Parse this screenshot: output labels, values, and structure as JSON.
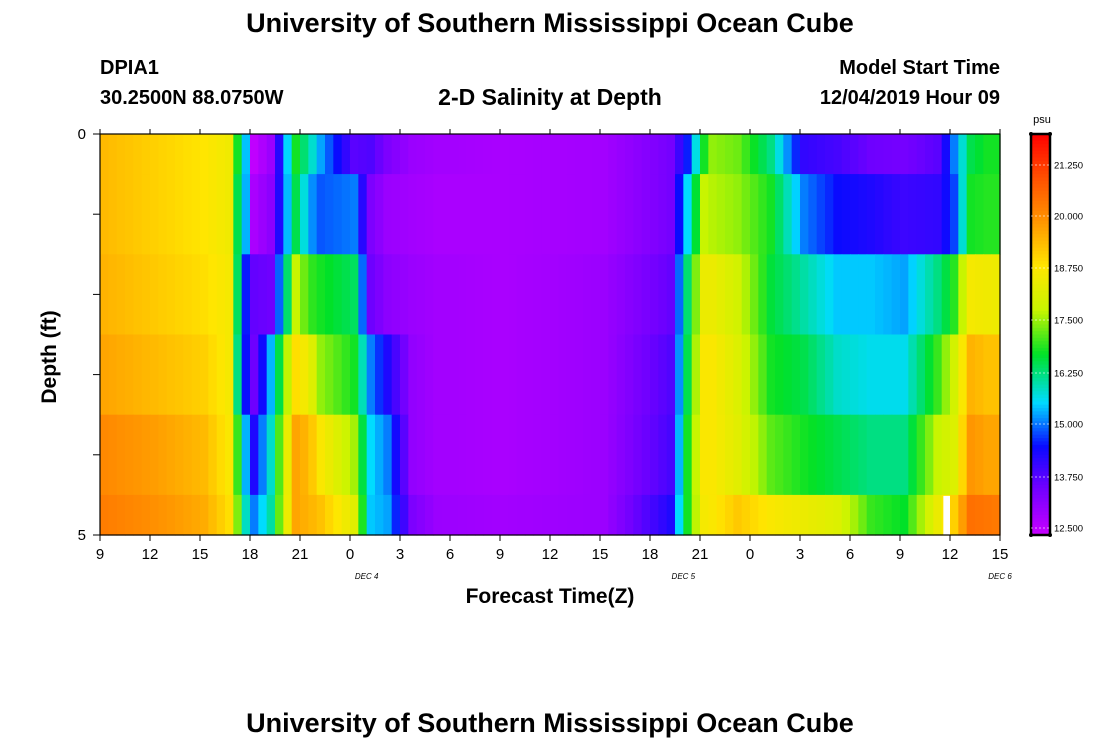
{
  "header": {
    "title_top": "University of Southern Mississippi Ocean Cube",
    "title_bottom": "University of Southern Mississippi Ocean Cube",
    "station_id": "DPIA1",
    "station_coords": "30.2500N 88.0750W",
    "subtitle": "2-D Salinity at Depth",
    "model_label": "Model Start Time",
    "model_time": "12/04/2019 Hour 09"
  },
  "colors": {
    "border": "#000000",
    "missing": "#ffffff"
  },
  "chart_data": {
    "type": "heatmap",
    "title": "2-D Salinity at Depth",
    "xlabel": "Forecast Time(Z)",
    "ylabel": "Depth (ft)",
    "x_tick_labels": [
      "9",
      "12",
      "15",
      "18",
      "21",
      "0",
      "3",
      "6",
      "9",
      "12",
      "15",
      "18",
      "21",
      "0",
      "3",
      "6",
      "9",
      "12",
      "15"
    ],
    "date_labels": [
      {
        "label": "DEC 4",
        "at_hour": 16
      },
      {
        "label": "DEC 5",
        "at_hour": 35
      },
      {
        "label": "DEC 6",
        "at_hour": 54
      }
    ],
    "x_range_hours_from_start": [
      0,
      54
    ],
    "y_tick_labels": [
      "0",
      "5"
    ],
    "ylim": [
      0,
      5
    ],
    "colorbar": {
      "unit": "psu",
      "ticks": [
        "21.250",
        "20.000",
        "18.750",
        "17.500",
        "16.250",
        "15.000",
        "13.750",
        "12.500"
      ],
      "range": [
        12.2,
        22.2
      ]
    },
    "depth_layers": [
      "0-0.5",
      "0.5-1.5",
      "1.5-2.5",
      "2.5-3.5",
      "3.5-4.5",
      "4.5-5"
    ],
    "key_times": [
      0,
      3,
      6,
      7.5,
      8,
      8.7,
      9,
      10,
      11.5,
      12.3,
      13,
      15,
      16,
      17,
      18.5,
      20,
      24,
      30,
      34,
      35,
      36,
      36.5,
      38,
      40,
      42,
      44,
      46,
      48,
      50,
      51,
      52,
      53,
      54
    ],
    "values": [
      [
        19.5,
        19.2,
        18.9,
        18.6,
        16.8,
        14.8,
        12.3,
        12.8,
        16.8,
        16.0,
        15.2,
        13.6,
        13.7,
        13.2,
        12.8,
        12.7,
        12.6,
        12.7,
        13.3,
        14.5,
        16.8,
        17.5,
        17.3,
        16.2,
        14.0,
        13.8,
        13.4,
        13.3,
        13.6,
        15.0,
        16.5,
        16.8,
        16.8
      ],
      [
        19.5,
        19.2,
        18.9,
        18.6,
        16.5,
        14.8,
        12.6,
        13.0,
        16.5,
        15.2,
        14.8,
        15.0,
        13.2,
        12.8,
        12.7,
        12.6,
        12.6,
        12.7,
        13.3,
        15.5,
        17.8,
        17.7,
        17.5,
        16.8,
        15.0,
        14.4,
        14.2,
        13.9,
        14.0,
        14.7,
        16.8,
        16.9,
        16.9
      ],
      [
        19.6,
        19.3,
        19.0,
        18.7,
        16.4,
        13.7,
        13.5,
        13.4,
        17.8,
        17.0,
        16.8,
        16.4,
        13.4,
        13.0,
        12.8,
        12.7,
        12.6,
        12.8,
        13.5,
        16.3,
        18.5,
        18.5,
        18.0,
        16.6,
        16.0,
        15.4,
        15.4,
        15.2,
        16.2,
        16.9,
        18.7,
        18.6,
        18.5
      ],
      [
        19.8,
        19.5,
        19.2,
        18.7,
        16.2,
        13.7,
        13.4,
        15.3,
        19.0,
        18.5,
        17.5,
        16.8,
        15.0,
        14.2,
        12.9,
        12.7,
        12.6,
        12.8,
        13.7,
        16.5,
        18.8,
        18.8,
        18.2,
        16.8,
        16.5,
        15.8,
        15.6,
        15.6,
        17.0,
        18.0,
        19.6,
        19.4,
        19.4
      ],
      [
        20.2,
        19.9,
        19.5,
        18.8,
        17.0,
        14.6,
        14.2,
        15.8,
        19.8,
        19.5,
        18.8,
        17.6,
        15.5,
        15.0,
        12.9,
        12.7,
        12.6,
        12.8,
        13.8,
        16.8,
        18.8,
        18.8,
        18.3,
        17.2,
        16.8,
        16.5,
        16.2,
        16.2,
        17.8,
        18.2,
        20.0,
        19.8,
        19.8
      ],
      [
        20.4,
        20.1,
        19.7,
        19.0,
        17.4,
        15.2,
        15.0,
        16.0,
        19.8,
        19.6,
        19.4,
        18.3,
        15.4,
        15.2,
        13.2,
        12.8,
        12.7,
        12.8,
        14.2,
        16.8,
        18.7,
        18.8,
        19.3,
        18.8,
        18.5,
        18.2,
        17.0,
        16.7,
        18.5,
        19.2,
        20.6,
        20.5,
        20.4
      ]
    ],
    "missing_cells": [
      {
        "layer": 5,
        "hours": [
          50.6,
          51.0
        ]
      }
    ]
  }
}
